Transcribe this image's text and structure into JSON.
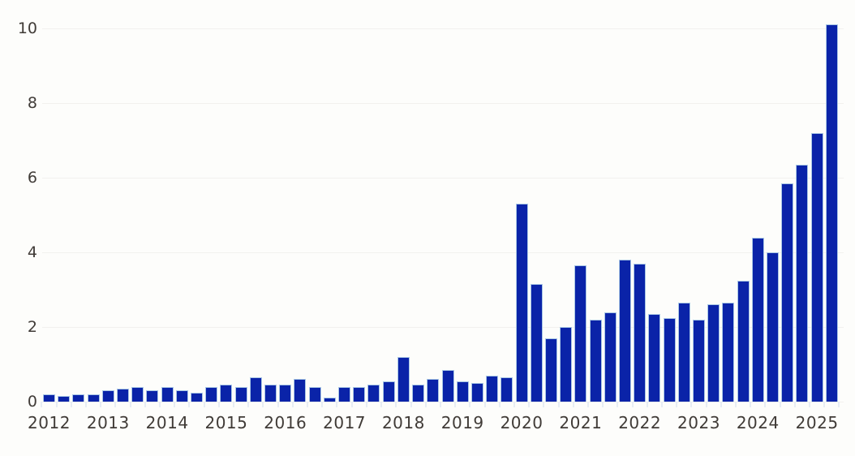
{
  "chart_data": {
    "type": "bar",
    "title": "",
    "xlabel": "",
    "ylabel": "",
    "ylim": [
      0,
      10
    ],
    "y_gridlines": [
      0,
      2,
      4,
      6,
      8,
      10
    ],
    "grid": "on",
    "legend": "none",
    "x": [
      "2012 Q1",
      "2012 Q2",
      "2012 Q3",
      "2012 Q4",
      "2013 Q1",
      "2013 Q2",
      "2013 Q3",
      "2013 Q4",
      "2014 Q1",
      "2014 Q2",
      "2014 Q3",
      "2014 Q4",
      "2015 Q1",
      "2015 Q2",
      "2015 Q3",
      "2015 Q4",
      "2016 Q1",
      "2016 Q2",
      "2016 Q3",
      "2016 Q4",
      "2017 Q1",
      "2017 Q2",
      "2017 Q3",
      "2017 Q4",
      "2018 Q1",
      "2018 Q2",
      "2018 Q3",
      "2018 Q4",
      "2019 Q1",
      "2019 Q2",
      "2019 Q3",
      "2019 Q4",
      "2020 Q1",
      "2020 Q2",
      "2020 Q3",
      "2020 Q4",
      "2021 Q1",
      "2021 Q2",
      "2021 Q3",
      "2021 Q4",
      "2022 Q1",
      "2022 Q2",
      "2022 Q3",
      "2022 Q4",
      "2023 Q1",
      "2023 Q2",
      "2023 Q3",
      "2023 Q4",
      "2024 Q1",
      "2024 Q2",
      "2024 Q3",
      "2024 Q4",
      "2025 Q1",
      "2025 Q2"
    ],
    "values": [
      0.2,
      0.15,
      0.2,
      0.2,
      0.3,
      0.35,
      0.4,
      0.3,
      0.4,
      0.3,
      0.25,
      0.4,
      0.45,
      0.4,
      0.65,
      0.45,
      0.45,
      0.6,
      0.4,
      0.1,
      0.4,
      0.4,
      0.45,
      0.55,
      1.2,
      0.45,
      0.6,
      0.85,
      0.55,
      0.5,
      0.7,
      0.65,
      5.3,
      3.15,
      1.7,
      2.0,
      3.65,
      2.2,
      2.4,
      3.8,
      3.7,
      2.35,
      2.25,
      2.65,
      2.2,
      2.6,
      2.65,
      3.25,
      4.4,
      4.0,
      5.85,
      6.35,
      7.2,
      10.1
    ]
  },
  "axes": {
    "y_tick_labels": [
      "0",
      "2",
      "4",
      "6",
      "8",
      "10"
    ],
    "x_tick_labels": [
      "2012",
      "2013",
      "2014",
      "2015",
      "2016",
      "2017",
      "2018",
      "2019",
      "2020",
      "2021",
      "2022",
      "2023",
      "2024",
      "2025"
    ]
  },
  "colors": {
    "bar_fill": "#0a23a8",
    "bar_outline": "#a9c7e5",
    "gridline": "#f2f1ee",
    "axis_label": "#403b37",
    "background": "#fdfdfb"
  }
}
